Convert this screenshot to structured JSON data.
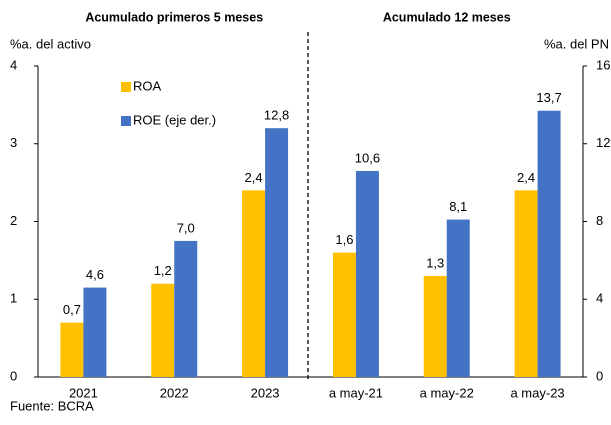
{
  "chart_data": {
    "type": "bar",
    "group_labels": [
      "Acumulado primeros 5 meses",
      "Acumulado 12 meses"
    ],
    "ylabel": "%a. del activo",
    "y2label": "%a. del PN",
    "categories": [
      "2021",
      "2022",
      "2023",
      "a may-21",
      "a may-22",
      "a may-23"
    ],
    "series": [
      {
        "name": "ROA",
        "color": "#FFC000",
        "values": [
          0.7,
          1.2,
          2.4,
          1.6,
          1.3,
          2.4
        ],
        "value_labels": [
          "0,7",
          "1,2",
          "2,4",
          "1,6",
          "1,3",
          "2,4"
        ]
      },
      {
        "name": "ROE (eje der.)",
        "color": "#4472C4",
        "axis": "y2",
        "values": [
          4.6,
          7.0,
          12.8,
          10.6,
          8.1,
          13.7
        ],
        "value_labels": [
          "4,6",
          "7,0",
          "12,8",
          "10,6",
          "8,1",
          "13,7"
        ]
      }
    ],
    "ylim": [
      0,
      4
    ],
    "yticks": [
      0,
      1,
      2,
      3,
      4
    ],
    "y2lim": [
      0,
      16
    ],
    "y2ticks": [
      0,
      4,
      8,
      12,
      16
    ],
    "legend": "upper left",
    "source": "Fuente: BCRA"
  }
}
